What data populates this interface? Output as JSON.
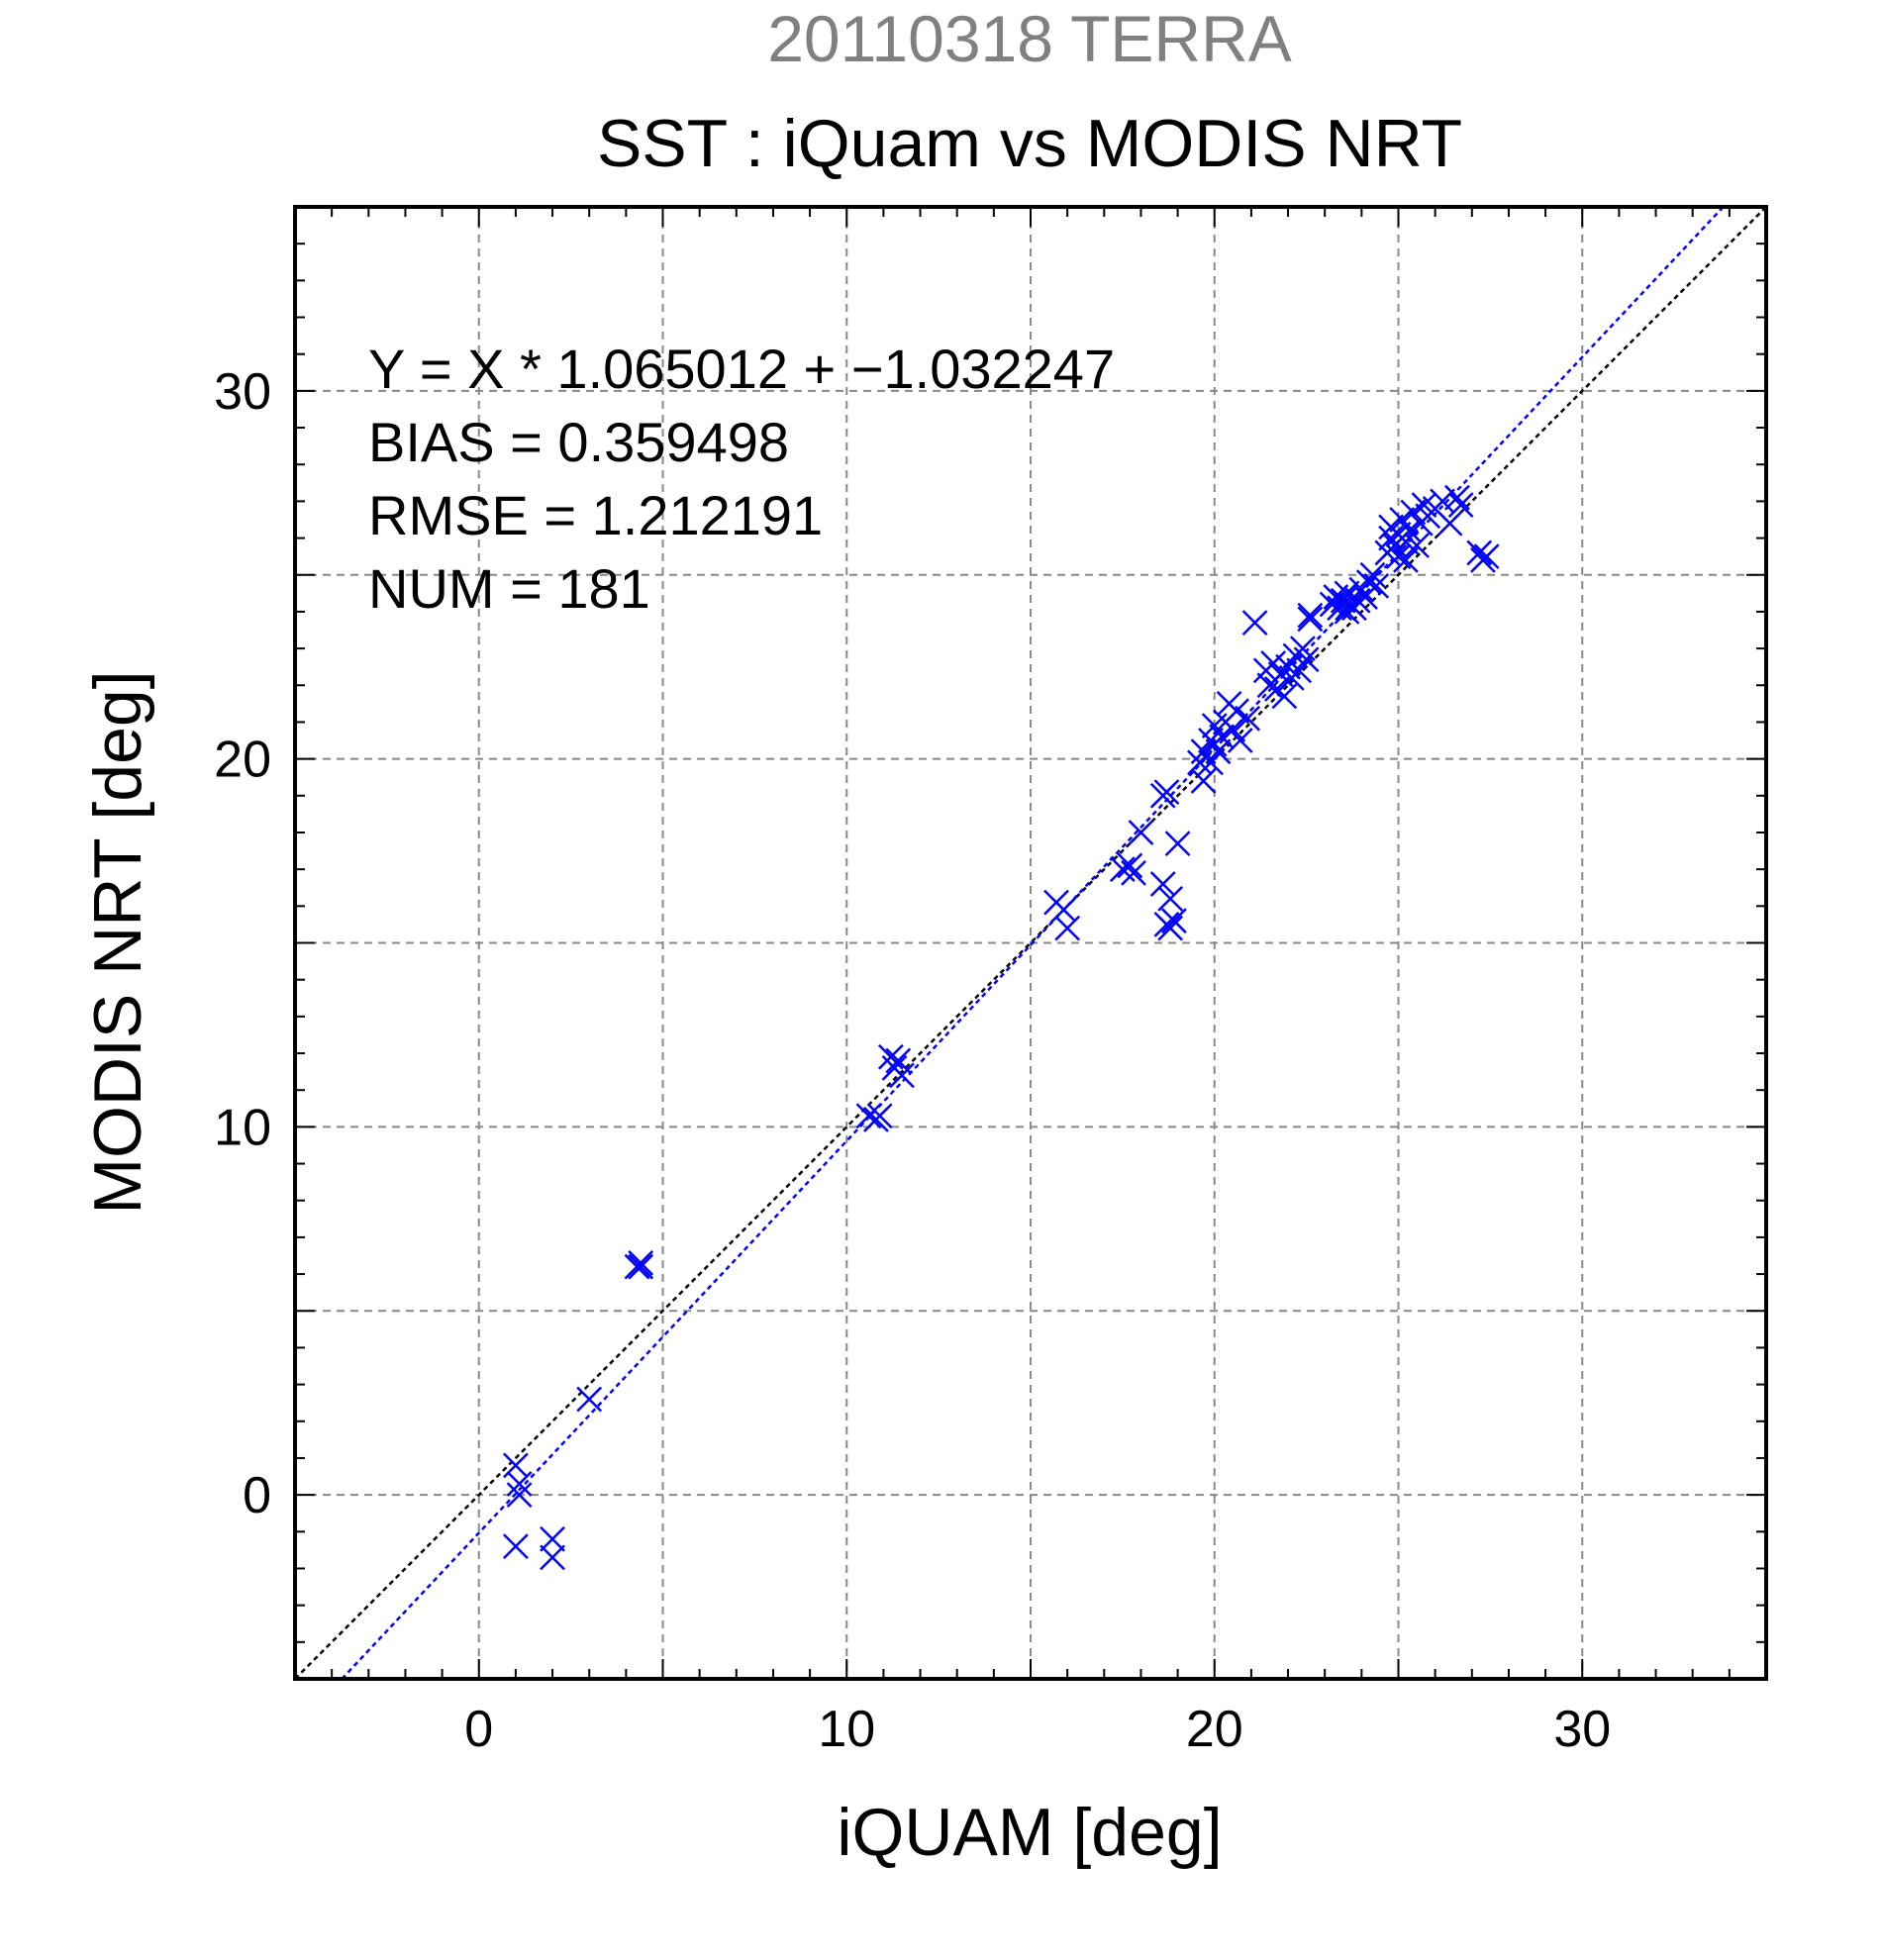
{
  "chart_data": {
    "type": "scatter",
    "supertitle": "20110318 TERRA",
    "title": "SST : iQuam vs MODIS NRT",
    "xlabel": "iQUAM [deg]",
    "ylabel": "MODIS NRT [deg]",
    "xlim": [
      -5,
      35
    ],
    "ylim": [
      -5,
      35
    ],
    "xticks": [
      0,
      10,
      20,
      30
    ],
    "yticks": [
      0,
      10,
      20,
      30
    ],
    "grid": true,
    "annotations": [
      "Y = X * 1.065012 + −1.032247",
      "BIAS = 0.359498",
      "RMSE = 1.212191",
      "NUM = 181"
    ],
    "colors": {
      "points": "#0000ff",
      "fit_line": "#0000ff",
      "identity_line": "#000000",
      "supertitle": "#808080"
    },
    "lines": [
      {
        "kind": "identity",
        "slope": 1.0,
        "intercept": 0.0
      },
      {
        "kind": "regression",
        "slope": 1.065012,
        "intercept": -1.032247
      }
    ],
    "points": [
      [
        1.0,
        0.8
      ],
      [
        1.0,
        -1.4
      ],
      [
        1.1,
        0.3
      ],
      [
        1.1,
        0.0
      ],
      [
        2.0,
        -1.2
      ],
      [
        2.0,
        -1.7
      ],
      [
        3.0,
        2.6
      ],
      [
        4.3,
        6.2
      ],
      [
        4.4,
        6.3
      ],
      [
        4.4,
        6.2
      ],
      [
        10.6,
        10.3
      ],
      [
        10.8,
        10.2
      ],
      [
        10.9,
        10.3
      ],
      [
        11.2,
        11.9
      ],
      [
        11.3,
        11.6
      ],
      [
        11.4,
        11.8
      ],
      [
        11.5,
        11.4
      ],
      [
        15.7,
        16.1
      ],
      [
        15.9,
        15.9
      ],
      [
        16.0,
        15.4
      ],
      [
        17.5,
        17.0
      ],
      [
        17.7,
        17.1
      ],
      [
        17.8,
        16.9
      ],
      [
        18.0,
        18.0
      ],
      [
        18.6,
        19.0
      ],
      [
        18.7,
        19.1
      ],
      [
        18.6,
        16.6
      ],
      [
        18.8,
        16.2
      ],
      [
        18.7,
        15.5
      ],
      [
        18.8,
        15.4
      ],
      [
        18.9,
        15.6
      ],
      [
        19.0,
        17.7
      ],
      [
        19.6,
        19.9
      ],
      [
        19.7,
        20.2
      ],
      [
        19.7,
        19.4
      ],
      [
        19.9,
        20.5
      ],
      [
        19.9,
        19.9
      ],
      [
        20.0,
        20.9
      ],
      [
        20.0,
        20.4
      ],
      [
        20.1,
        20.2
      ],
      [
        20.2,
        20.6
      ],
      [
        20.3,
        21.0
      ],
      [
        20.4,
        21.5
      ],
      [
        20.5,
        20.8
      ],
      [
        20.6,
        21.3
      ],
      [
        20.7,
        20.5
      ],
      [
        20.9,
        21.1
      ],
      [
        21.1,
        23.7
      ],
      [
        21.4,
        22.4
      ],
      [
        21.5,
        22.0
      ],
      [
        21.6,
        22.6
      ],
      [
        21.7,
        21.9
      ],
      [
        21.8,
        22.3
      ],
      [
        21.9,
        21.7
      ],
      [
        22.0,
        22.5
      ],
      [
        22.1,
        22.2
      ],
      [
        22.2,
        22.8
      ],
      [
        22.3,
        22.4
      ],
      [
        22.4,
        23.0
      ],
      [
        22.5,
        22.7
      ],
      [
        22.6,
        23.9
      ],
      [
        22.6,
        23.8
      ],
      [
        23.2,
        24.2
      ],
      [
        23.3,
        24.4
      ],
      [
        23.4,
        24.1
      ],
      [
        23.5,
        24.3
      ],
      [
        23.6,
        24.0
      ],
      [
        23.6,
        24.5
      ],
      [
        23.7,
        24.2
      ],
      [
        23.8,
        24.1
      ],
      [
        23.9,
        24.3
      ],
      [
        24.0,
        24.6
      ],
      [
        24.1,
        24.4
      ],
      [
        24.2,
        24.8
      ],
      [
        24.3,
        25.0
      ],
      [
        24.4,
        24.7
      ],
      [
        24.7,
        25.6
      ],
      [
        24.8,
        26.0
      ],
      [
        24.8,
        26.3
      ],
      [
        24.9,
        25.8
      ],
      [
        25.0,
        25.5
      ],
      [
        25.0,
        26.1
      ],
      [
        25.1,
        26.5
      ],
      [
        25.2,
        25.9
      ],
      [
        25.2,
        25.4
      ],
      [
        25.3,
        26.2
      ],
      [
        25.4,
        26.7
      ],
      [
        25.5,
        25.8
      ],
      [
        25.6,
        26.4
      ],
      [
        25.7,
        26.9
      ],
      [
        25.8,
        26.6
      ],
      [
        26.0,
        26.8
      ],
      [
        26.2,
        27.0
      ],
      [
        26.4,
        26.4
      ],
      [
        26.6,
        27.1
      ],
      [
        26.7,
        26.9
      ],
      [
        27.2,
        25.6
      ],
      [
        27.4,
        25.5
      ],
      [
        27.3,
        25.4
      ]
    ]
  }
}
